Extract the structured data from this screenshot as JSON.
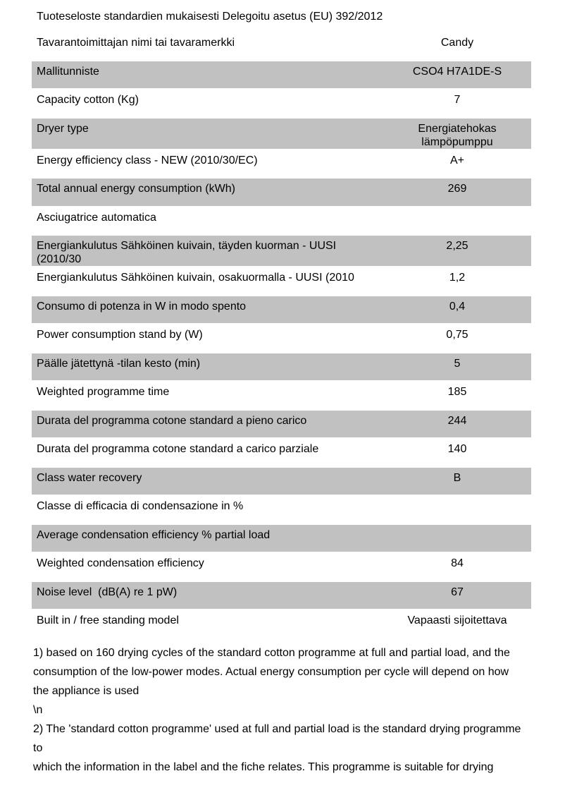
{
  "title": "Tuoteseloste standardien mukaisesti Delegoitu asetus (EU) 392/2012",
  "table": {
    "highlight_color": "#c1c1c1",
    "rows": [
      {
        "label": "Tavarantoimittajan nimi tai tavaramerkki",
        "value": "Candy",
        "shaded": false
      },
      {
        "label": "Mallitunniste",
        "value": "CSO4 H7A1DE-S",
        "shaded": true
      },
      {
        "label": "Capacity cotton (Kg)",
        "value": "7",
        "shaded": false
      },
      {
        "label": "Dryer type",
        "value": "Energiatehokas lämpöpumppu",
        "shaded": true
      },
      {
        "label": "Energy efficiency class - NEW (2010/30/EC)",
        "value": "A+",
        "shaded": false
      },
      {
        "label": "Total annual energy consumption (kWh)",
        "value": "269",
        "shaded": true
      },
      {
        "label": "Asciugatrice automatica",
        "value": "",
        "shaded": false
      },
      {
        "label": "Energiankulutus Sähköinen kuivain, täyden kuorman - UUSI (2010/30",
        "value": "2,25",
        "shaded": true
      },
      {
        "label": "Energiankulutus Sähköinen kuivain, osakuormalla - UUSI (2010",
        "value": "1,2",
        "shaded": false
      },
      {
        "label": "Consumo di potenza in W in modo spento",
        "value": "0,4",
        "shaded": true
      },
      {
        "label": "Power consumption stand by (W)",
        "value": "0,75",
        "shaded": false
      },
      {
        "label": "Päälle jätettynä -tilan kesto (min)",
        "value": "5",
        "shaded": true
      },
      {
        "label": "Weighted programme time",
        "value": "185",
        "shaded": false
      },
      {
        "label": "Durata del programma cotone standard a pieno carico",
        "value": "244",
        "shaded": true
      },
      {
        "label": "Durata del programma cotone standard a carico parziale",
        "value": "140",
        "shaded": false
      },
      {
        "label": "Class water recovery",
        "value": "B",
        "shaded": true
      },
      {
        "label": "Classe di efficacia di condensazione in %",
        "value": "",
        "shaded": false
      },
      {
        "label": "Average condensation efficiency % partial load",
        "value": "",
        "shaded": true
      },
      {
        "label": "Weighted condensation efficiency",
        "value": "84",
        "shaded": false
      },
      {
        "label": "Noise level  (dB(A) re 1 pW)",
        "value": "67",
        "shaded": true
      },
      {
        "label": "Built in / free standing model",
        "value": "Vapaasti sijoitettava",
        "shaded": false
      }
    ]
  },
  "footnotes": {
    "lines": [
      "1) based on 160 drying cycles of the standard cotton programme at full and partial load, and the",
      "consumption of the low-power modes. Actual energy consumption per cycle will depend on how",
      "the appliance is used",
      "\\n",
      "2) The 'standard cotton programme' used at full and partial load is the standard drying programme",
      "to",
      "which the information in the label and the fiche relates. This programme is suitable for drying"
    ]
  }
}
